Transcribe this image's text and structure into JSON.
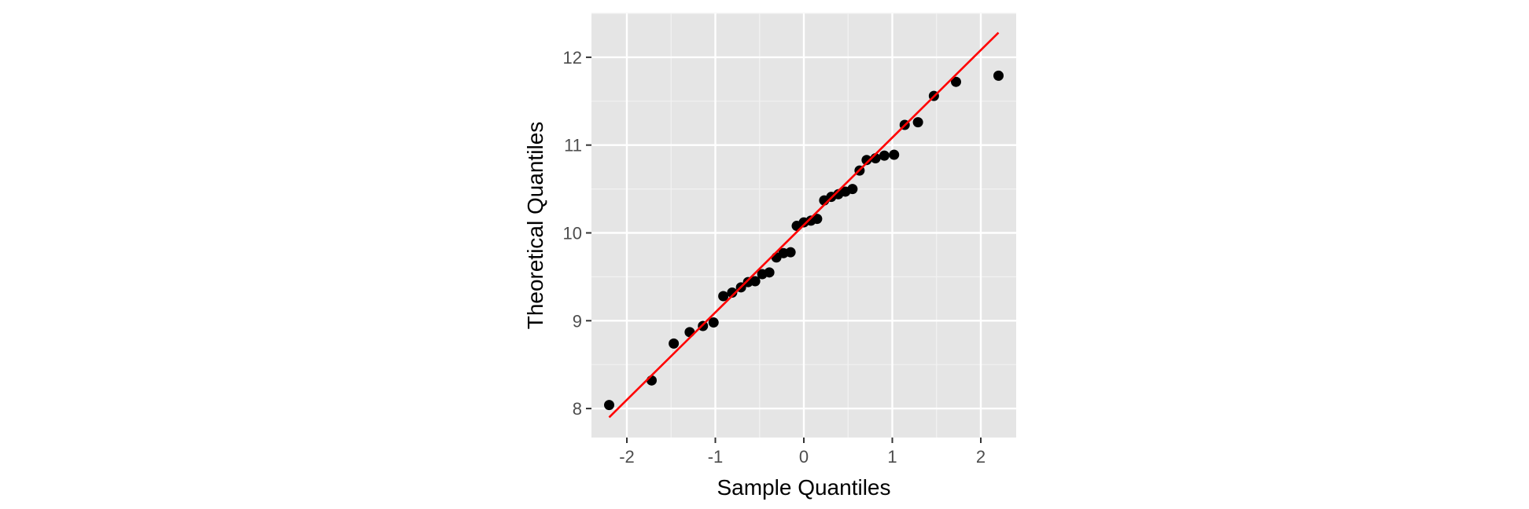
{
  "chart_data": {
    "type": "scatter",
    "title": "",
    "xlabel": "Sample Quantiles",
    "ylabel": "Theoretical Quantiles",
    "xlim": [
      -2.4,
      2.4
    ],
    "ylim": [
      7.67,
      12.5
    ],
    "x_ticks": [
      -2,
      -1,
      0,
      1,
      2
    ],
    "x_tick_labels": [
      "-2",
      "-1",
      "0",
      "1",
      "2"
    ],
    "y_ticks": [
      8,
      9,
      10,
      11,
      12
    ],
    "y_tick_labels": [
      "8",
      "9",
      "10",
      "11",
      "12"
    ],
    "grid": true,
    "legend": "none",
    "series": [
      {
        "kind": "points",
        "color": "#000000",
        "x": [
          -2.2,
          -1.72,
          -1.47,
          -1.29,
          -1.14,
          -1.02,
          -0.91,
          -0.81,
          -0.71,
          -0.63,
          -0.55,
          -0.47,
          -0.39,
          -0.31,
          -0.23,
          -0.15,
          -0.08,
          0.0,
          0.08,
          0.15,
          0.23,
          0.31,
          0.39,
          0.47,
          0.55,
          0.63,
          0.71,
          0.81,
          0.91,
          1.02,
          1.14,
          1.29,
          1.47,
          1.72,
          2.2
        ],
        "y": [
          8.04,
          8.32,
          8.74,
          8.87,
          8.94,
          8.98,
          9.28,
          9.32,
          9.38,
          9.44,
          9.45,
          9.53,
          9.55,
          9.72,
          9.77,
          9.78,
          10.08,
          10.12,
          10.14,
          10.16,
          10.37,
          10.41,
          10.44,
          10.47,
          10.5,
          10.71,
          10.83,
          10.85,
          10.88,
          10.89,
          11.23,
          11.26,
          11.56,
          11.72,
          11.79
        ]
      },
      {
        "kind": "line",
        "color": "#ff0000",
        "x": [
          -2.2,
          2.2
        ],
        "y": [
          7.9,
          12.28
        ]
      }
    ]
  }
}
